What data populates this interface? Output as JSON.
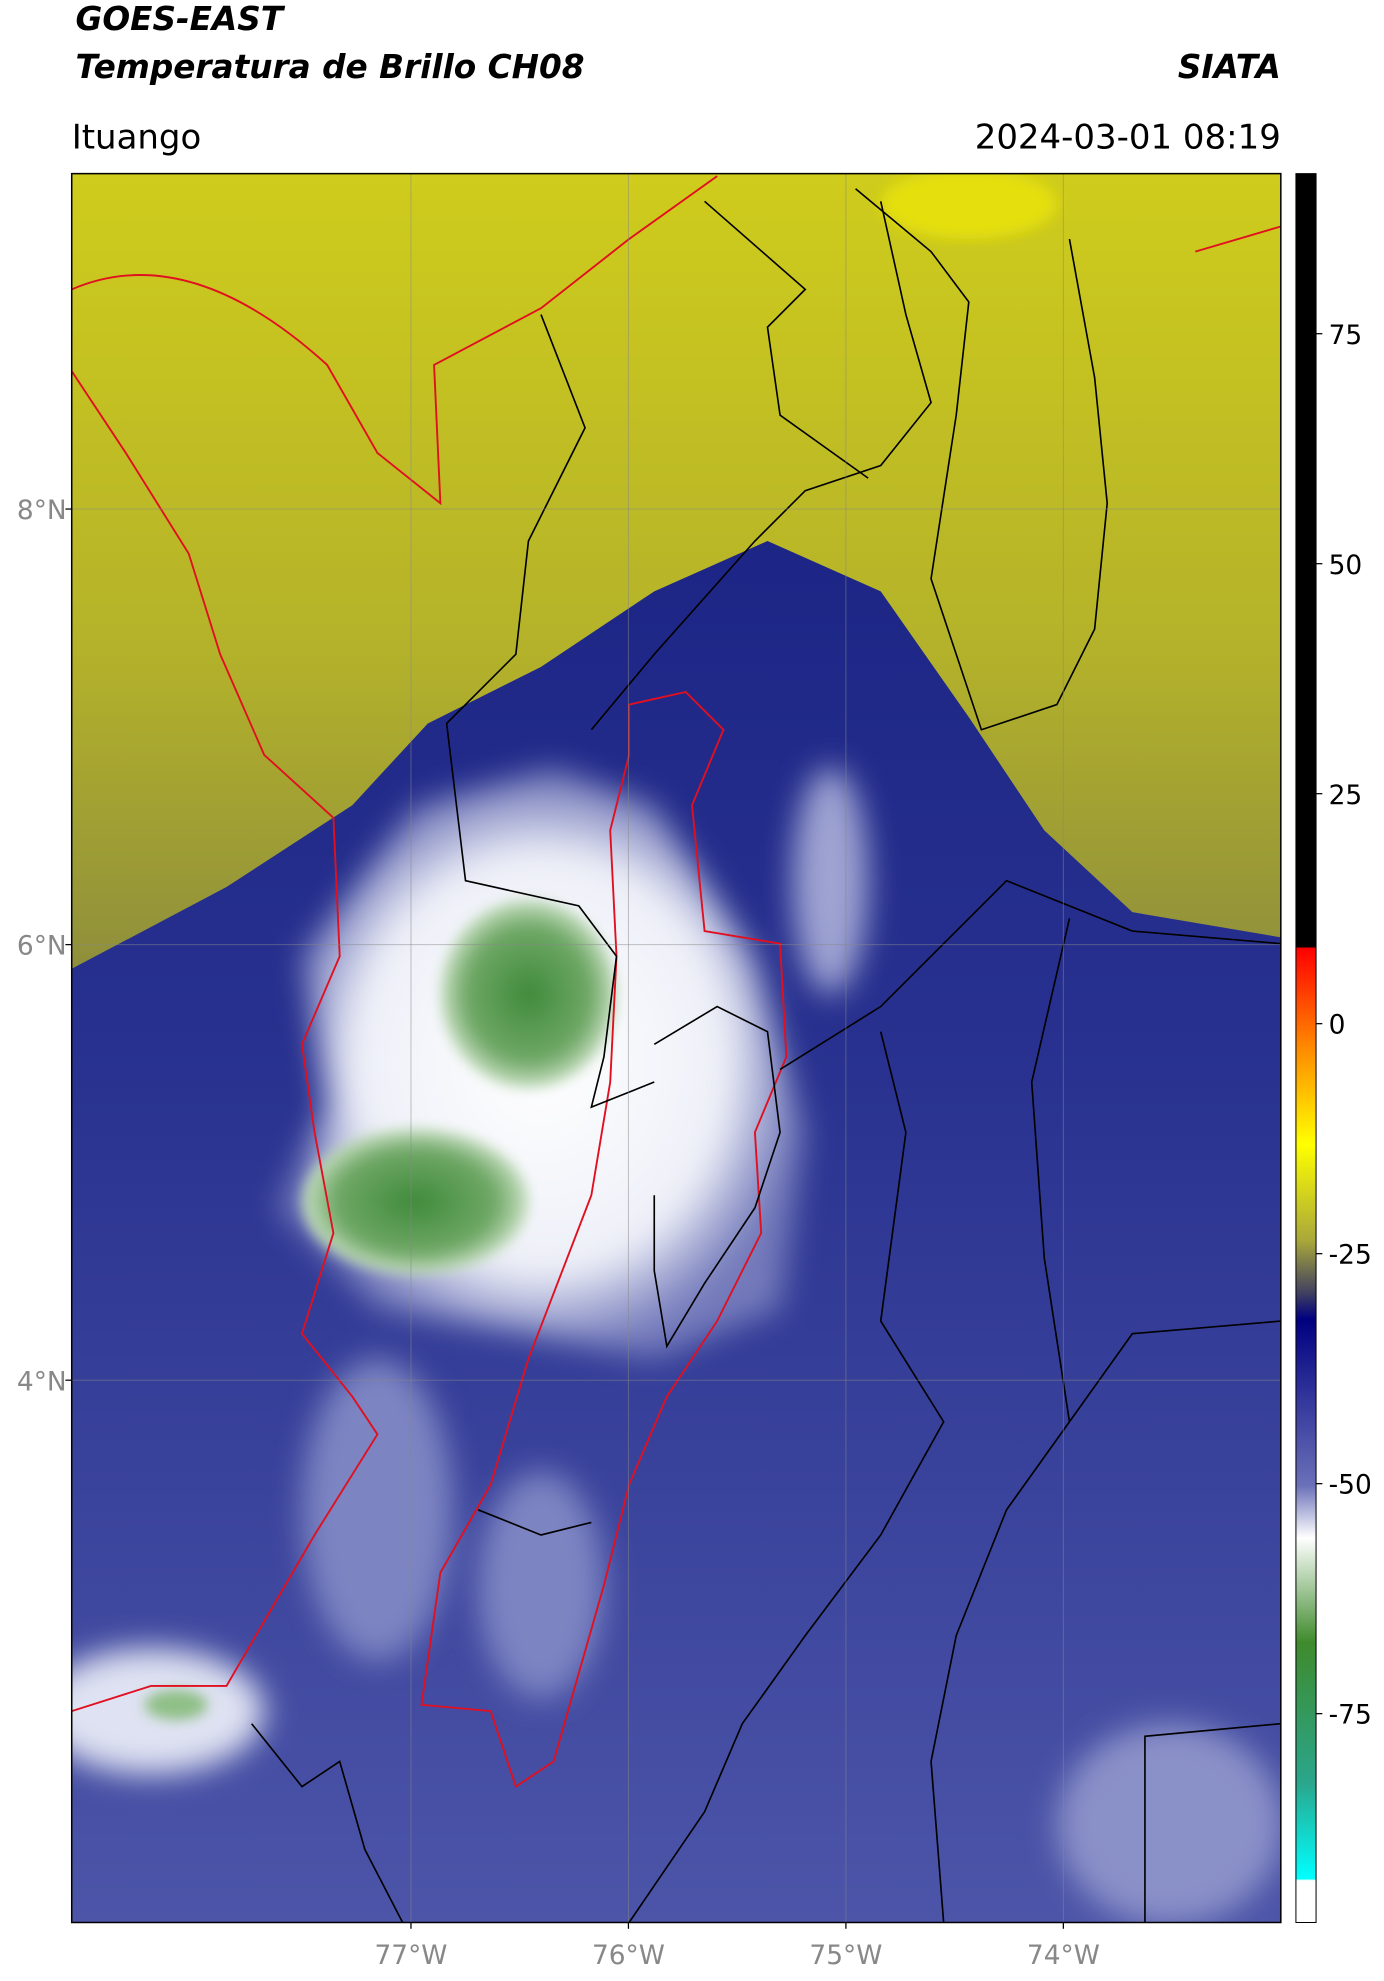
{
  "chart_data": {
    "type": "map",
    "title": "GOES-EAST",
    "subtitle": "Temperatura de Brillo CH08",
    "source": "SIATA",
    "location": "Ituango",
    "timestamp": "2024-03-01 08:19",
    "xlim": [
      -78.56,
      -73.0
    ],
    "ylim": [
      1.51,
      9.54
    ],
    "xticks": [
      {
        "value": -77,
        "label": "77°W"
      },
      {
        "value": -76,
        "label": "76°W"
      },
      {
        "value": -75,
        "label": "75°W"
      },
      {
        "value": -74,
        "label": "74°W"
      }
    ],
    "yticks": [
      {
        "value": 4,
        "label": "4°N"
      },
      {
        "value": 6,
        "label": "6°N"
      },
      {
        "value": 8,
        "label": "8°N"
      }
    ],
    "grid": true,
    "colorbar": {
      "lim": [
        -97.7,
        92.4
      ],
      "ticks": [
        -75,
        -50,
        -25,
        0,
        25,
        50,
        75
      ]
    }
  }
}
